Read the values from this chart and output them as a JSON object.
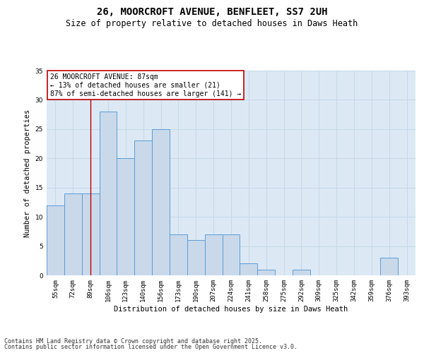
{
  "title1": "26, MOORCROFT AVENUE, BENFLEET, SS7 2UH",
  "title2": "Size of property relative to detached houses in Daws Heath",
  "xlabel": "Distribution of detached houses by size in Daws Heath",
  "ylabel": "Number of detached properties",
  "categories": [
    "55sqm",
    "72sqm",
    "89sqm",
    "106sqm",
    "123sqm",
    "140sqm",
    "156sqm",
    "173sqm",
    "190sqm",
    "207sqm",
    "224sqm",
    "241sqm",
    "258sqm",
    "275sqm",
    "292sqm",
    "309sqm",
    "325sqm",
    "342sqm",
    "359sqm",
    "376sqm",
    "393sqm"
  ],
  "values": [
    12,
    14,
    14,
    28,
    20,
    23,
    25,
    7,
    6,
    7,
    7,
    2,
    1,
    0,
    1,
    0,
    0,
    0,
    0,
    3,
    0
  ],
  "bar_color": "#c9d9ea",
  "bar_edge_color": "#5b9bd5",
  "vline_x_index": 2,
  "vline_color": "#c00000",
  "annotation_text": "26 MOORCROFT AVENUE: 87sqm\n← 13% of detached houses are smaller (21)\n87% of semi-detached houses are larger (141) →",
  "annotation_box_color": "white",
  "annotation_box_edge": "#c00000",
  "ylim": [
    0,
    35
  ],
  "yticks": [
    0,
    5,
    10,
    15,
    20,
    25,
    30,
    35
  ],
  "grid_color": "#c8d8e8",
  "background_color": "#dce9f5",
  "footer1": "Contains HM Land Registry data © Crown copyright and database right 2025.",
  "footer2": "Contains public sector information licensed under the Open Government Licence v3.0.",
  "title1_fontsize": 10,
  "title2_fontsize": 8.5,
  "xlabel_fontsize": 7.5,
  "ylabel_fontsize": 7.5,
  "tick_fontsize": 6.5,
  "annotation_fontsize": 7,
  "footer_fontsize": 6
}
